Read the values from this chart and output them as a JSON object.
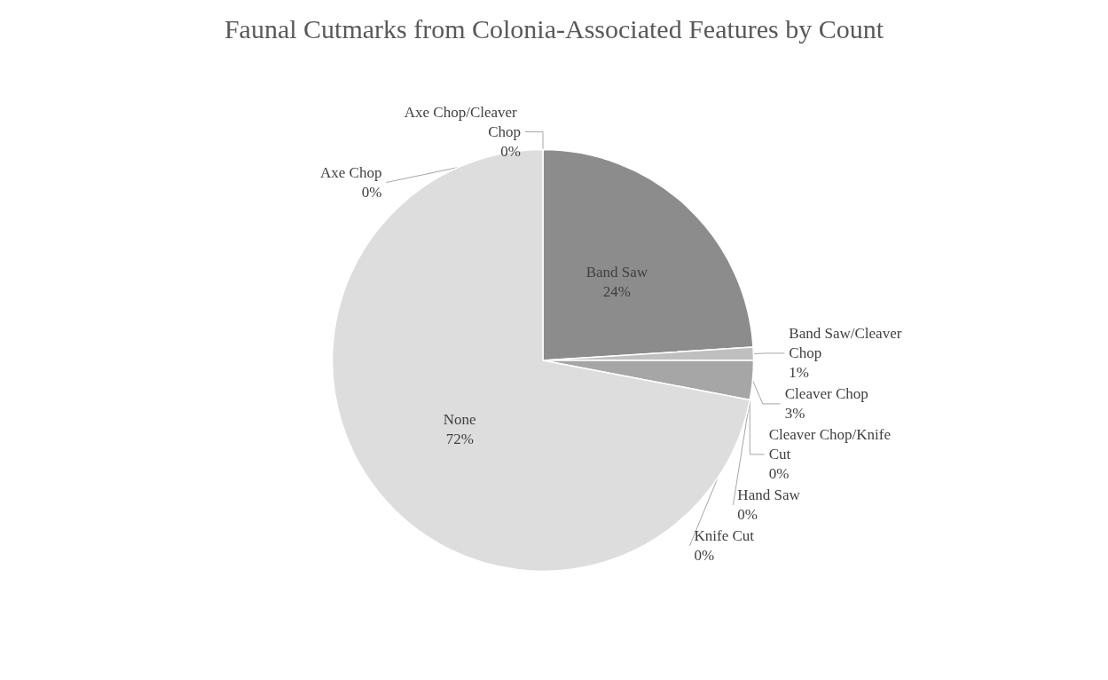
{
  "chart_data": {
    "type": "pie",
    "title": "Faunal Cutmarks from Colonia-Associated Features by Count",
    "categories": [
      "Axe Chop",
      "Axe Chop/Cleaver Chop",
      "Band Saw",
      "Band Saw/Cleaver Chop",
      "Cleaver Chop",
      "Cleaver Chop/Knife Cut",
      "Hand Saw",
      "Knife Cut",
      "None"
    ],
    "values": [
      0,
      0,
      24,
      1,
      3,
      0,
      0,
      0,
      72
    ],
    "colors": [
      "#595959",
      "#7f7f7f",
      "#8c8c8c",
      "#bfbfbf",
      "#a6a6a6",
      "#737373",
      "#cccccc",
      "#b2b2b2",
      "#dddddd"
    ],
    "value_labels": [
      "0%",
      "0%",
      "24%",
      "1%",
      "3%",
      "0%",
      "0%",
      "0%",
      "72%"
    ],
    "legend": false
  }
}
